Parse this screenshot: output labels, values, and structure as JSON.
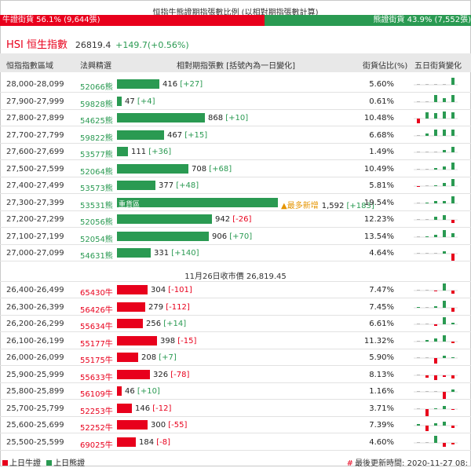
{
  "title": "恒指牛熊證期指張數比例 (以相對期指張數計算)",
  "ratio": {
    "bull_label": "牛證街貨 56.1% (9,644張)",
    "bear_label": "熊證街貨 43.9% (7,552張)",
    "bull_fraction": 0.561,
    "bull_color": "#e8001c",
    "bear_color": "#2a9a52"
  },
  "index": {
    "name": "HSI 恒生指數",
    "price": "26819.4",
    "change": "+149.7(+0.56%)"
  },
  "columns": [
    "恒指指數區域",
    "法興精選",
    "相對期指張數 [括號內為一日變化]",
    "街貨佔比(%)",
    "五日街貨變化"
  ],
  "bear_rows": [
    {
      "range": "28,000-28,099",
      "code": "52066熊",
      "qty": 416,
      "qty_text": "416",
      "chg": "[+27]",
      "pct": "5.60%",
      "spark": [
        0,
        0,
        0,
        0,
        9
      ]
    },
    {
      "range": "27,900-27,999",
      "code": "59828熊",
      "qty": 47,
      "qty_text": "47",
      "chg": "[+4]",
      "pct": "0.61%",
      "spark": [
        0,
        0,
        9,
        5,
        9
      ]
    },
    {
      "range": "27,800-27,899",
      "code": "54625熊",
      "qty": 868,
      "qty_text": "868",
      "chg": "[+10]",
      "pct": "10.48%",
      "spark": [
        -6,
        8,
        7,
        9,
        8
      ]
    },
    {
      "range": "27,700-27,799",
      "code": "59822熊",
      "qty": 467,
      "qty_text": "467",
      "chg": "[+15]",
      "pct": "6.68%",
      "spark": [
        0,
        3,
        8,
        8,
        8
      ]
    },
    {
      "range": "27,600-27,699",
      "code": "53577熊",
      "qty": 111,
      "qty_text": "111",
      "chg": "[+36]",
      "pct": "1.49%",
      "spark": [
        0,
        0,
        0,
        3,
        7
      ]
    },
    {
      "range": "27,500-27,599",
      "code": "52064熊",
      "qty": 708,
      "qty_text": "708",
      "chg": "[+68]",
      "pct": "10.49%",
      "spark": [
        0,
        0,
        2,
        4,
        9
      ]
    },
    {
      "range": "27,400-27,499",
      "code": "53573熊",
      "qty": 377,
      "qty_text": "377",
      "chg": "[+48]",
      "pct": "5.81%",
      "spark": [
        -1,
        0,
        1,
        4,
        9
      ]
    },
    {
      "range": "27,300-27,399",
      "code": "53531熊",
      "qty": 1592,
      "qty_text": "1,592",
      "chg": "[+183]",
      "pct": "19.54%",
      "spark": [
        0,
        1,
        3,
        3,
        9
      ],
      "heavy": "重貨區",
      "new_high": "▲最多新增"
    },
    {
      "range": "27,200-27,299",
      "code": "52056熊",
      "qty": 942,
      "qty_text": "942",
      "chg": "[-26]",
      "pct": "12.23%",
      "spark": [
        0,
        0,
        4,
        6,
        -4
      ]
    },
    {
      "range": "27,100-27,199",
      "code": "52054熊",
      "qty": 906,
      "qty_text": "906",
      "chg": "[+70]",
      "pct": "13.54%",
      "spark": [
        0,
        1,
        3,
        9,
        5
      ]
    },
    {
      "range": "27,000-27,099",
      "code": "54631熊",
      "qty": 331,
      "qty_text": "331",
      "chg": "[+140]",
      "pct": "4.64%",
      "spark": [
        0,
        0,
        0,
        3,
        -9
      ]
    }
  ],
  "close_label": "11月26日收市價 26,819.45",
  "bull_rows": [
    {
      "range": "26,400-26,499",
      "code": "65430牛",
      "qty": 304,
      "qty_text": "304",
      "chg": "[-101]",
      "pct": "7.47%",
      "spark": [
        0,
        0,
        -1,
        9,
        -4
      ]
    },
    {
      "range": "26,300-26,399",
      "code": "56426牛",
      "qty": 279,
      "qty_text": "279",
      "chg": "[-112]",
      "pct": "7.45%",
      "spark": [
        1,
        0,
        2,
        9,
        -5
      ]
    },
    {
      "range": "26,200-26,299",
      "code": "55634牛",
      "qty": 256,
      "qty_text": "256",
      "chg": "[+14]",
      "pct": "6.61%",
      "spark": [
        0,
        0,
        -2,
        9,
        2
      ]
    },
    {
      "range": "26,100-26,199",
      "code": "55177牛",
      "qty": 398,
      "qty_text": "398",
      "chg": "[-15]",
      "pct": "11.32%",
      "spark": [
        0,
        2,
        4,
        8,
        -2
      ]
    },
    {
      "range": "26,000-26,099",
      "code": "55175牛",
      "qty": 208,
      "qty_text": "208",
      "chg": "[+7]",
      "pct": "5.90%",
      "spark": [
        0,
        0,
        -7,
        3,
        1
      ]
    },
    {
      "range": "25,900-25,999",
      "code": "55633牛",
      "qty": 326,
      "qty_text": "326",
      "chg": "[-78]",
      "pct": "8.13%",
      "spark": [
        0,
        -3,
        -6,
        -2,
        -4
      ]
    },
    {
      "range": "25,800-25,899",
      "code": "56109牛",
      "qty": 46,
      "qty_text": "46",
      "chg": "[+10]",
      "pct": "1.16%",
      "spark": [
        0,
        0,
        0,
        -9,
        3
      ]
    },
    {
      "range": "25,700-25,799",
      "code": "52253牛",
      "qty": 146,
      "qty_text": "146",
      "chg": "[-12]",
      "pct": "3.71%",
      "spark": [
        0,
        -9,
        1,
        4,
        -1
      ]
    },
    {
      "range": "25,600-25,699",
      "code": "52252牛",
      "qty": 300,
      "qty_text": "300",
      "chg": "[-55]",
      "pct": "7.39%",
      "spark": [
        2,
        -7,
        3,
        5,
        -3
      ]
    },
    {
      "range": "25,500-25,599",
      "code": "69025牛",
      "qty": 184,
      "qty_text": "184",
      "chg": "[-8]",
      "pct": "4.60%",
      "spark": [
        0,
        0,
        9,
        -5,
        -2
      ]
    }
  ],
  "legend": {
    "bull": "上日牛證",
    "bear": "上日熊證"
  },
  "update_prefix": "#",
  "update_text": "最後更新時間: 2020-11-27 08:"
}
